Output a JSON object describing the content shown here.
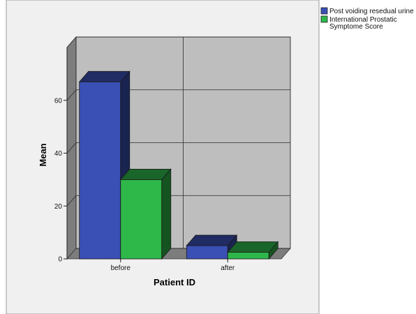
{
  "chart_data": {
    "type": "bar",
    "categories": [
      "before",
      "after"
    ],
    "series": [
      {
        "name": "Post voiding resedual urine",
        "values": [
          67,
          5
        ],
        "color": "#3a50b4"
      },
      {
        "name": "International Prostatic Symptome Score",
        "values": [
          30,
          2.5
        ],
        "color": "#2fb84a"
      }
    ],
    "xlabel": "Patient ID",
    "ylabel": "Mean",
    "yticks": [
      0,
      20,
      40,
      60
    ],
    "ylim": [
      0,
      80
    ],
    "grid": true,
    "legend": "top-right",
    "style": "3d-clustered"
  },
  "legend": {
    "items": [
      {
        "lines": [
          "Post voiding resedual urine"
        ],
        "color": "#3a50b4"
      },
      {
        "lines": [
          "International Prostatic",
          "Symptome Score"
        ],
        "color": "#2fb84a"
      }
    ]
  }
}
